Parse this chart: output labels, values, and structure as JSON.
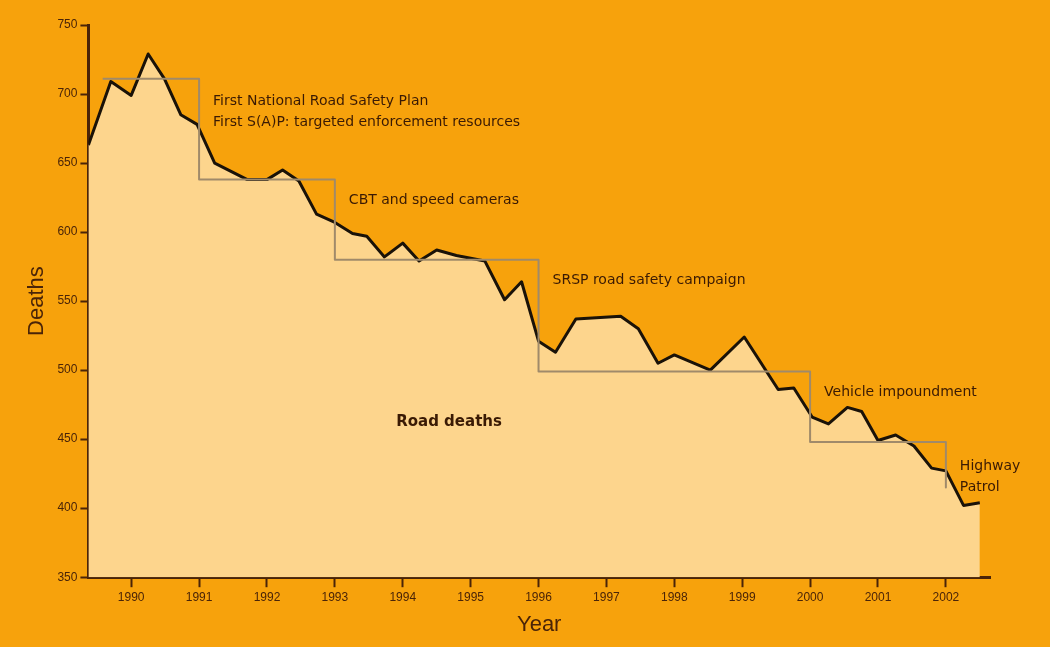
{
  "chart_data": {
    "type": "area",
    "xlabel": "Year",
    "ylabel": "Deaths",
    "xlim": [
      1989.37,
      2002.65
    ],
    "xticks": [
      1990,
      1991,
      1992,
      1993,
      1994,
      1995,
      1996,
      1997,
      1998,
      1999,
      2000,
      2001,
      2002
    ],
    "ylim": [
      350,
      750
    ],
    "yticks": [
      350,
      400,
      450,
      500,
      550,
      600,
      650,
      700,
      750
    ],
    "grid": false,
    "legend": false,
    "series": [
      {
        "name": "Road deaths",
        "color": "#1a1208",
        "x": [
          1989.37,
          1989.7,
          1990.0,
          1990.25,
          1990.49,
          1990.73,
          1990.97,
          1991.23,
          1991.47,
          1991.71,
          1992.0,
          1992.23,
          1992.47,
          1992.73,
          1993.0,
          1993.26,
          1993.47,
          1993.73,
          1994.0,
          1994.24,
          1994.5,
          1994.79,
          1995.21,
          1995.5,
          1995.75,
          1996.0,
          1996.25,
          1996.55,
          1997.21,
          1997.47,
          1997.76,
          1998.0,
          1998.53,
          1999.03,
          1999.53,
          1999.76,
          2000.03,
          2000.27,
          2000.55,
          2000.76,
          2001.0,
          2001.26,
          2001.53,
          2001.79,
          2002.0,
          2002.26,
          2002.5
        ],
        "values": [
          663,
          709,
          699,
          729,
          711,
          685,
          678,
          650,
          644,
          638,
          638,
          645,
          637,
          613,
          607,
          599,
          597,
          582,
          592,
          579,
          587,
          583,
          579,
          551,
          564,
          521,
          513,
          537,
          539,
          530,
          505,
          511,
          500,
          524,
          486,
          487,
          466,
          461,
          473,
          470,
          449,
          453,
          445,
          429,
          427,
          402,
          404
        ]
      },
      {
        "type": "line",
        "color": "#a08a6a",
        "x": [
          1989.58,
          1991,
          1991,
          1993,
          1993,
          1996,
          1996,
          2000,
          2000,
          2002,
          2002
        ],
        "values": [
          711,
          711,
          638,
          638,
          580,
          580,
          499,
          499,
          448,
          448,
          415
        ]
      }
    ],
    "annotations": [
      {
        "text": "First National Road Safety Plan\nFirst S(A)P: targeted enforcement resources",
        "x": 1991,
        "y": 687
      },
      {
        "text": "CBT and speed cameras",
        "x": 1993,
        "y": 623
      },
      {
        "text": "SRSP road safety campaign",
        "x": 1996,
        "y": 565
      },
      {
        "text": "Vehicle impoundment",
        "x": 2000,
        "y": 484
      },
      {
        "text": "Highway\nPatrol",
        "x": 2002,
        "y": 423
      }
    ]
  }
}
